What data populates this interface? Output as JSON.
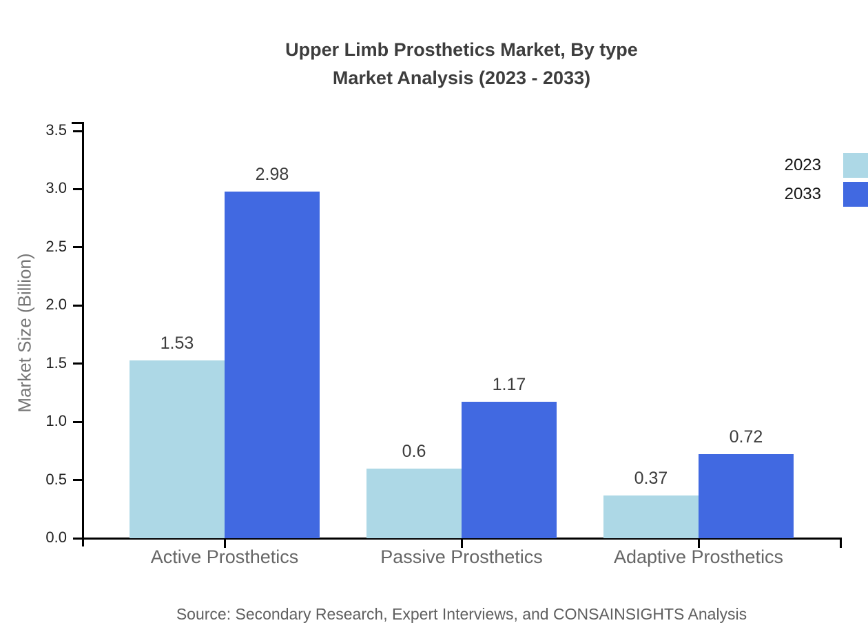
{
  "title": {
    "line1": "Upper Limb Prosthetics Market, By type",
    "line2": "Market Analysis (2023 - 2033)"
  },
  "source": "Source: Secondary Research, Expert Interviews, and CONSAINSIGHTS Analysis",
  "chart_data": {
    "type": "bar",
    "categories": [
      "Active Prosthetics",
      "Passive Prosthetics",
      "Adaptive Prosthetics"
    ],
    "series": [
      {
        "name": "2023",
        "color": "#ADD8E6",
        "values": [
          1.53,
          0.6,
          0.37
        ]
      },
      {
        "name": "2033",
        "color": "#4169E1",
        "values": [
          2.98,
          1.17,
          0.72
        ]
      }
    ],
    "title": "Upper Limb Prosthetics Market, By type Market Analysis (2023 - 2033)",
    "xlabel": "",
    "ylabel": "Market Size (Billion)",
    "ylim": [
      0,
      3.5
    ],
    "ytick_step": 0.5,
    "ytick_labels": [
      "0.0",
      "0.5",
      "1.0",
      "1.5",
      "2.0",
      "2.5",
      "3.0",
      "3.5"
    ],
    "grid": false,
    "legend_position": "upper-right",
    "value_labels_shown": true,
    "axis_color": "#000000"
  }
}
